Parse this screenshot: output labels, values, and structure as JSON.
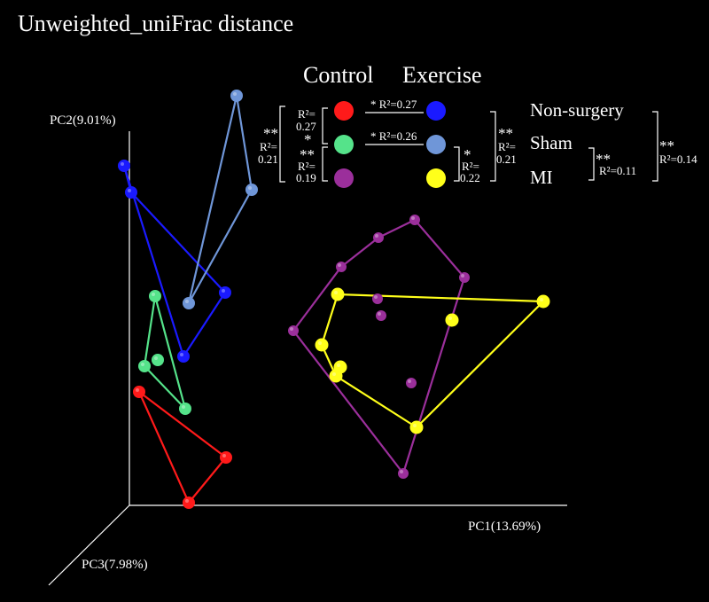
{
  "title": "Unweighted_uniFrac distance",
  "chart_data": {
    "type": "scatter",
    "title": "Unweighted_uniFrac distance",
    "axes": {
      "x_label": "PC1(13.69%)",
      "y_label": "PC2(9.01%)",
      "z_label": "PC3(7.98%)"
    },
    "legend": {
      "column_headers": [
        "Control",
        "Exercise"
      ],
      "rows": [
        "Non-surgery",
        "Sham",
        "MI"
      ]
    },
    "series": [
      {
        "name": "Control Non-surgery",
        "color": "#ff1a1a",
        "hull": true
      },
      {
        "name": "Exercise Non-surgery",
        "color": "#1a1aff",
        "hull": true
      },
      {
        "name": "Control Sham",
        "color": "#55e38a",
        "hull": true
      },
      {
        "name": "Exercise Sham",
        "color": "#6f96d8",
        "hull": true
      },
      {
        "name": "Control MI",
        "color": "#9b2f9b",
        "hull": true
      },
      {
        "name": "Exercise MI",
        "color": "#ffff1a",
        "hull": true
      }
    ],
    "annotations": {
      "top_left_outer": {
        "sig": "**",
        "r2": "R²=",
        "val": "0.21"
      },
      "top_left_inner_a": {
        "r2": "R²=",
        "val": "0.27",
        "sig": "*"
      },
      "top_left_inner_b": {
        "sig": "**",
        "r2": "R²=",
        "val": "0.19"
      },
      "between_nonsurgery": "* R²=0.27",
      "between_sham": "* R²=0.26",
      "right_exercise_a": {
        "sig": "*",
        "r2": "R²=",
        "val": "0.22"
      },
      "right_exercise_b": {
        "sig": "**",
        "r2": "R²=",
        "val": "0.21"
      },
      "right_mi": {
        "sig": "**",
        "r2": "R²=0.11"
      },
      "far_right": {
        "sig": "**",
        "r2": "R²=0.14"
      }
    }
  }
}
